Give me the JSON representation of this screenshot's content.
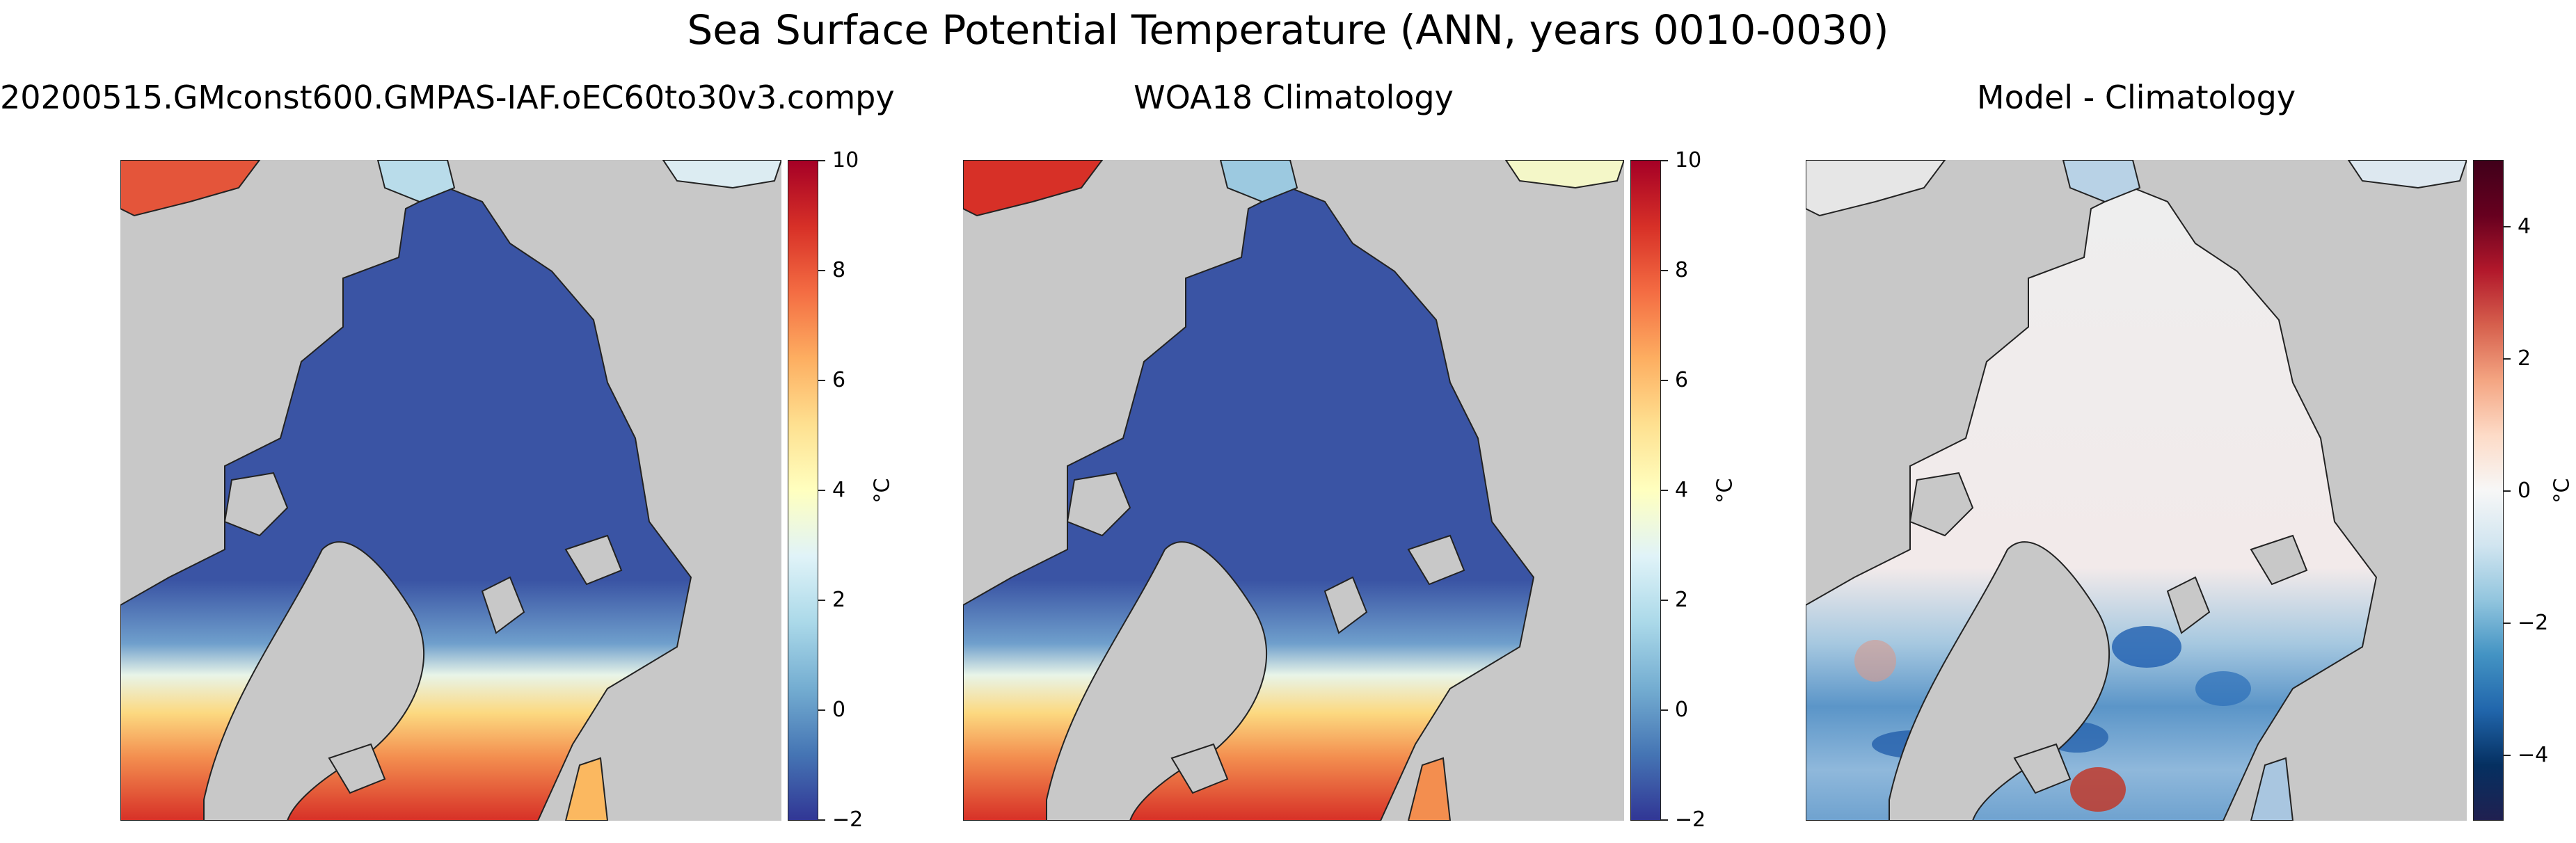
{
  "figure": {
    "suptitle": "Sea Surface Potential Temperature (ANN, years 0010-0030)"
  },
  "panels": [
    {
      "title": "20200515.GMconst600.GMPAS-IAF.oEC60to30v3.compy",
      "colormap": "RdYlBu_r",
      "colorbar": {
        "label": "°C",
        "ticks": [
          "−2",
          "0",
          "2",
          "4",
          "6",
          "8",
          "10"
        ],
        "range": [
          -2,
          10
        ]
      }
    },
    {
      "title": "WOA18 Climatology",
      "colormap": "RdYlBu_r",
      "colorbar": {
        "label": "°C",
        "ticks": [
          "−2",
          "0",
          "2",
          "4",
          "6",
          "8",
          "10"
        ],
        "range": [
          -2,
          10
        ]
      }
    },
    {
      "title": "Model - Climatology",
      "colormap": "RdBu_r",
      "colorbar": {
        "label": "°C",
        "ticks": [
          "−4",
          "−2",
          "0",
          "2",
          "4"
        ],
        "range": [
          -5,
          5
        ]
      }
    }
  ],
  "colors": {
    "land": "#c8c8c8",
    "cold": "#3a54a4",
    "warm": "#d73027",
    "neutral": "#f0f0f0",
    "coastline": "#222222"
  }
}
